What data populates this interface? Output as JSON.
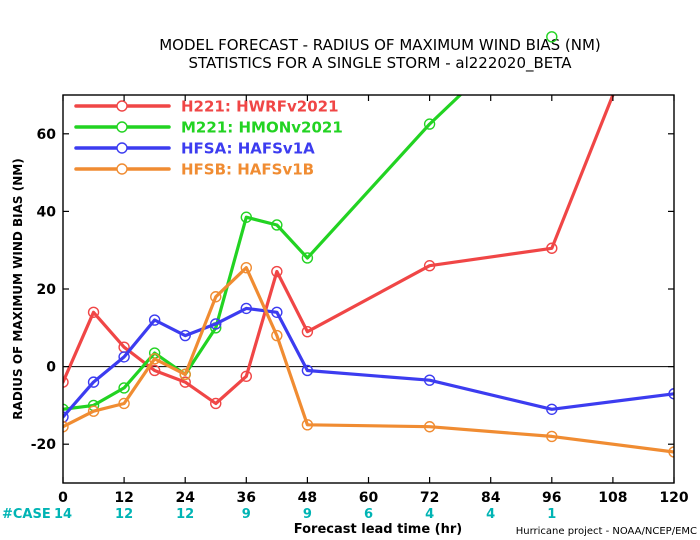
{
  "chart_data": {
    "type": "line",
    "title": "MODEL FORECAST - RADIUS OF MAXIMUM WIND BIAS (NM)",
    "subtitle": "STATISTICS FOR A SINGLE STORM - al222020_BETA",
    "xlabel": "Forecast lead time (hr)",
    "ylabel": "RADIUS OF MAXIMUM WIND BIAS (NM)",
    "xlim": [
      0,
      120
    ],
    "ylim": [
      -30,
      70
    ],
    "x_ticks": [
      0,
      12,
      24,
      36,
      48,
      60,
      72,
      84,
      96,
      108,
      120
    ],
    "y_ticks": [
      -20,
      0,
      20,
      40,
      60
    ],
    "zero_line": true,
    "legend_position": "top-left",
    "case_label": "#CASE",
    "case_color": "#00b4b4",
    "case_counts": [
      {
        "x": 0,
        "n": "14"
      },
      {
        "x": 12,
        "n": "12"
      },
      {
        "x": 24,
        "n": "12"
      },
      {
        "x": 36,
        "n": "9"
      },
      {
        "x": 48,
        "n": "9"
      },
      {
        "x": 60,
        "n": "6"
      },
      {
        "x": 72,
        "n": "4"
      },
      {
        "x": 84,
        "n": "4"
      },
      {
        "x": 96,
        "n": "1"
      }
    ],
    "series": [
      {
        "name": "H221: HWRFv2021",
        "color": "#f04646",
        "points": [
          [
            0,
            -4
          ],
          [
            6,
            14
          ],
          [
            12,
            5
          ],
          [
            18,
            -1
          ],
          [
            24,
            -4
          ],
          [
            30,
            -9.5
          ],
          [
            36,
            -2.5
          ],
          [
            42,
            24.5
          ],
          [
            48,
            9
          ],
          [
            72,
            26
          ],
          [
            96,
            30.5
          ],
          [
            108,
            70
          ]
        ]
      },
      {
        "name": "M221: HMONv2021",
        "color": "#22d322",
        "points": [
          [
            0,
            -11
          ],
          [
            6,
            -10
          ],
          [
            12,
            -5.5
          ],
          [
            18,
            3.5
          ],
          [
            24,
            -2
          ],
          [
            30,
            10
          ],
          [
            36,
            38.5
          ],
          [
            42,
            36.5
          ],
          [
            48,
            28
          ],
          [
            72,
            62.5
          ],
          [
            78,
            70
          ]
        ],
        "outlier": {
          "x": 96,
          "y": 85
        }
      },
      {
        "name": "HFSA: HAFSv1A",
        "color": "#3c3cf0",
        "points": [
          [
            0,
            -13
          ],
          [
            6,
            -4
          ],
          [
            12,
            2.5
          ],
          [
            18,
            12
          ],
          [
            24,
            8
          ],
          [
            30,
            11
          ],
          [
            36,
            15
          ],
          [
            42,
            14
          ],
          [
            48,
            -1
          ],
          [
            72,
            -3.5
          ],
          [
            96,
            -11
          ],
          [
            120,
            -7
          ]
        ]
      },
      {
        "name": "HFSB: HAFSv1B",
        "color": "#f08c32",
        "points": [
          [
            0,
            -15.5
          ],
          [
            6,
            -11.5
          ],
          [
            12,
            -9.5
          ],
          [
            18,
            2
          ],
          [
            24,
            -2
          ],
          [
            30,
            18
          ],
          [
            36,
            25.5
          ],
          [
            42,
            8
          ],
          [
            48,
            -15
          ],
          [
            72,
            -15.5
          ],
          [
            96,
            -18
          ],
          [
            120,
            -22
          ]
        ]
      }
    ]
  },
  "credit": "Hurricane project - NOAA/NCEP/EMC"
}
